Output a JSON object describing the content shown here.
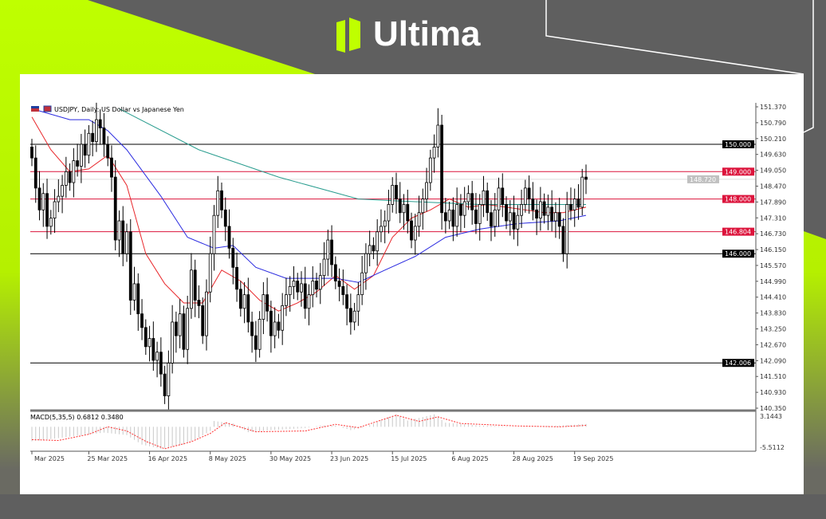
{
  "brand": {
    "name": "Ultima",
    "accent": "#bfff00",
    "frame_gray": "#5f5f5f"
  },
  "chart_data": {
    "type": "candlestick",
    "title": "USDJPY, Daily:  US Dollar vs Japanese Yen",
    "ylim": [
      140.35,
      151.37
    ],
    "y_ticks": [
      "151.370",
      "150.790",
      "150.210",
      "149.630",
      "149.050",
      "148.470",
      "147.890",
      "147.310",
      "146.730",
      "146.150",
      "145.570",
      "144.990",
      "144.410",
      "143.830",
      "143.250",
      "142.670",
      "142.090",
      "141.510",
      "140.930",
      "140.350"
    ],
    "x_ticks": [
      {
        "date": "2025-03-04",
        "label": "Mar 2025"
      },
      {
        "date": "2025-03-25",
        "label": "25 Mar 2025"
      },
      {
        "date": "2025-04-16",
        "label": "16 Apr 2025"
      },
      {
        "date": "2025-05-08",
        "label": "8 May 2025"
      },
      {
        "date": "2025-05-30",
        "label": "30 May 2025"
      },
      {
        "date": "2025-06-23",
        "label": "23 Jun 2025"
      },
      {
        "date": "2025-07-15",
        "label": "15 Jul 2025"
      },
      {
        "date": "2025-08-06",
        "label": "6 Aug 2025"
      },
      {
        "date": "2025-08-28",
        "label": "28 Aug 2025"
      },
      {
        "date": "2025-09-19",
        "label": "19 Sep 2025"
      }
    ],
    "first_open": 149.9,
    "closes": [
      149.5,
      148.4,
      147.6,
      148.2,
      147.0,
      147.3,
      147.9,
      148.1,
      148.5,
      149.0,
      148.6,
      149.4,
      149.2,
      150.0,
      149.6,
      150.4,
      150.1,
      150.9,
      150.6,
      150.0,
      149.5,
      148.8,
      146.5,
      147.2,
      146.0,
      146.8,
      144.3,
      144.9,
      143.8,
      143.3,
      142.6,
      142.9,
      142.1,
      142.4,
      141.6,
      140.8,
      142.0,
      143.5,
      143.0,
      143.8,
      142.5,
      144.0,
      145.4,
      144.3,
      144.1,
      143.0,
      144.6,
      146.0,
      147.4,
      148.3,
      147.6,
      147.0,
      146.2,
      145.5,
      144.7,
      144.0,
      144.5,
      143.5,
      143.0,
      142.5,
      143.6,
      144.5,
      143.9,
      143.0,
      143.5,
      143.2,
      144.1,
      144.5,
      144.8,
      145.0,
      144.6,
      144.9,
      144.0,
      144.5,
      145.0,
      144.7,
      145.2,
      145.8,
      146.5,
      145.6,
      145.0,
      144.8,
      144.5,
      144.0,
      143.5,
      143.9,
      144.5,
      145.3,
      146.0,
      146.3,
      146.1,
      146.8,
      147.0,
      147.2,
      147.8,
      148.5,
      148.0,
      147.5,
      147.8,
      147.2,
      146.5,
      147.0,
      147.5,
      148.0,
      148.6,
      149.5,
      149.9,
      150.7,
      147.5,
      147.2,
      147.6,
      147.0,
      147.8,
      147.4,
      147.9,
      148.2,
      147.6,
      147.1,
      147.8,
      148.3,
      147.5,
      147.0,
      147.6,
      148.4,
      147.8,
      147.2,
      147.5,
      146.9,
      147.4,
      147.8,
      148.4,
      148.0,
      147.6,
      147.3,
      147.9,
      147.4,
      147.7,
      147.2,
      147.5,
      147.0,
      146.0,
      147.8,
      147.6,
      148.0,
      147.7,
      148.8,
      148.72
    ],
    "moving_averages": [
      {
        "color": "#e8262a",
        "points": [
          [
            "2025-03-04",
            151.0
          ],
          [
            "2025-03-11",
            149.8
          ],
          [
            "2025-03-18",
            149.0
          ],
          [
            "2025-03-25",
            149.1
          ],
          [
            "2025-04-01",
            149.6
          ],
          [
            "2025-04-08",
            148.5
          ],
          [
            "2025-04-15",
            146.0
          ],
          [
            "2025-04-22",
            144.9
          ],
          [
            "2025-04-29",
            144.2
          ],
          [
            "2025-05-06",
            144.2
          ],
          [
            "2025-05-13",
            145.4
          ],
          [
            "2025-05-20",
            145.0
          ],
          [
            "2025-05-27",
            144.3
          ],
          [
            "2025-06-03",
            143.9
          ],
          [
            "2025-06-10",
            144.2
          ],
          [
            "2025-06-17",
            144.6
          ],
          [
            "2025-06-24",
            145.2
          ],
          [
            "2025-07-01",
            144.7
          ],
          [
            "2025-07-08",
            145.2
          ],
          [
            "2025-07-15",
            146.6
          ],
          [
            "2025-07-22",
            147.3
          ],
          [
            "2025-07-29",
            147.6
          ],
          [
            "2025-08-05",
            148.0
          ],
          [
            "2025-08-12",
            147.7
          ],
          [
            "2025-08-19",
            147.8
          ],
          [
            "2025-08-26",
            147.7
          ],
          [
            "2025-09-02",
            147.6
          ],
          [
            "2025-09-09",
            147.5
          ],
          [
            "2025-09-16",
            147.5
          ],
          [
            "2025-09-24",
            147.7
          ]
        ]
      },
      {
        "color": "#2a2ae0",
        "points": [
          [
            "2025-03-04",
            151.3
          ],
          [
            "2025-03-18",
            150.9
          ],
          [
            "2025-03-25",
            150.9
          ],
          [
            "2025-04-01",
            150.5
          ],
          [
            "2025-04-08",
            149.8
          ],
          [
            "2025-04-21",
            148.1
          ],
          [
            "2025-04-30",
            146.6
          ],
          [
            "2025-05-09",
            146.2
          ],
          [
            "2025-05-16",
            146.3
          ],
          [
            "2025-05-26",
            145.5
          ],
          [
            "2025-06-05",
            145.1
          ],
          [
            "2025-06-24",
            145.1
          ],
          [
            "2025-07-02",
            144.95
          ],
          [
            "2025-07-11",
            145.4
          ],
          [
            "2025-07-23",
            145.9
          ],
          [
            "2025-08-04",
            146.6
          ],
          [
            "2025-08-15",
            146.9
          ],
          [
            "2025-08-29",
            147.1
          ],
          [
            "2025-09-15",
            147.2
          ],
          [
            "2025-09-24",
            147.4
          ]
        ]
      },
      {
        "color": "#2a9d8f",
        "points": [
          [
            "2025-04-04",
            151.3
          ],
          [
            "2025-05-05",
            149.8
          ],
          [
            "2025-06-03",
            148.8
          ],
          [
            "2025-07-02",
            148.0
          ],
          [
            "2025-07-23",
            147.9
          ],
          [
            "2025-08-15",
            147.8
          ],
          [
            "2025-09-24",
            147.8
          ]
        ]
      }
    ],
    "levels": [
      {
        "value": 150.0,
        "label": "150.000",
        "color": "#000000"
      },
      {
        "value": 149.0,
        "label": "149.000",
        "color": "#dc143c"
      },
      {
        "value": 148.72,
        "label": "148.720",
        "color": "#c0c0c0"
      },
      {
        "value": 148.0,
        "label": "148.000",
        "color": "#dc143c"
      },
      {
        "value": 146.804,
        "label": "146.804",
        "color": "#dc143c"
      },
      {
        "value": 146.0,
        "label": "146.000",
        "color": "#000000"
      },
      {
        "value": 142.006,
        "label": "142.006",
        "color": "#000000"
      }
    ],
    "macd": {
      "label": "MACD(5,35,5) 0.6812 0.3480",
      "ylim": [
        -5.5112,
        3.1443
      ],
      "y_ticks": [
        "3.1443",
        "-5.5112"
      ],
      "histogram_color": "#c8c8c8",
      "signal_color": "#ff3030",
      "main": [
        [
          "2025-03-04",
          -3.5
        ],
        [
          "2025-03-31",
          -1.4
        ],
        [
          "2025-04-08",
          -2.0
        ],
        [
          "2025-04-14",
          -4.3
        ],
        [
          "2025-04-21",
          -5.3
        ],
        [
          "2025-04-29",
          -4.3
        ],
        [
          "2025-05-05",
          -2.6
        ],
        [
          "2025-05-08",
          -1.0
        ],
        [
          "2025-05-09",
          1.4
        ],
        [
          "2025-05-16",
          0.8
        ],
        [
          "2025-05-22",
          -1.3
        ],
        [
          "2025-05-30",
          -0.8
        ],
        [
          "2025-06-12",
          -0.3
        ],
        [
          "2025-06-18",
          0.3
        ],
        [
          "2025-06-24",
          0.3
        ],
        [
          "2025-06-30",
          -0.8
        ],
        [
          "2025-07-04",
          0.0
        ],
        [
          "2025-07-11",
          2.0
        ],
        [
          "2025-07-16",
          3.0
        ],
        [
          "2025-07-21",
          1.5
        ],
        [
          "2025-07-30",
          3.0
        ],
        [
          "2025-08-04",
          1.0
        ],
        [
          "2025-08-15",
          0.3
        ],
        [
          "2025-08-29",
          0.0
        ],
        [
          "2025-09-15",
          0.3
        ],
        [
          "2025-09-24",
          0.6812
        ]
      ],
      "signal": [
        [
          "2025-03-04",
          -3.1
        ],
        [
          "2025-03-13",
          -3.3
        ],
        [
          "2025-03-25",
          -1.8
        ],
        [
          "2025-04-01",
          0.0
        ],
        [
          "2025-04-08",
          -1.0
        ],
        [
          "2025-04-15",
          -3.5
        ],
        [
          "2025-04-22",
          -5.3
        ],
        [
          "2025-05-01",
          -3.6
        ],
        [
          "2025-05-08",
          -1.6
        ],
        [
          "2025-05-14",
          1.0
        ],
        [
          "2025-05-26",
          -1.2
        ],
        [
          "2025-06-12",
          -1.0
        ],
        [
          "2025-06-24",
          0.6
        ],
        [
          "2025-07-02",
          -0.2
        ],
        [
          "2025-07-16",
          2.8
        ],
        [
          "2025-07-24",
          1.3
        ],
        [
          "2025-07-31",
          2.4
        ],
        [
          "2025-08-08",
          0.8
        ],
        [
          "2025-08-29",
          0.2
        ],
        [
          "2025-09-15",
          0.0
        ],
        [
          "2025-09-24",
          0.348
        ]
      ]
    }
  }
}
